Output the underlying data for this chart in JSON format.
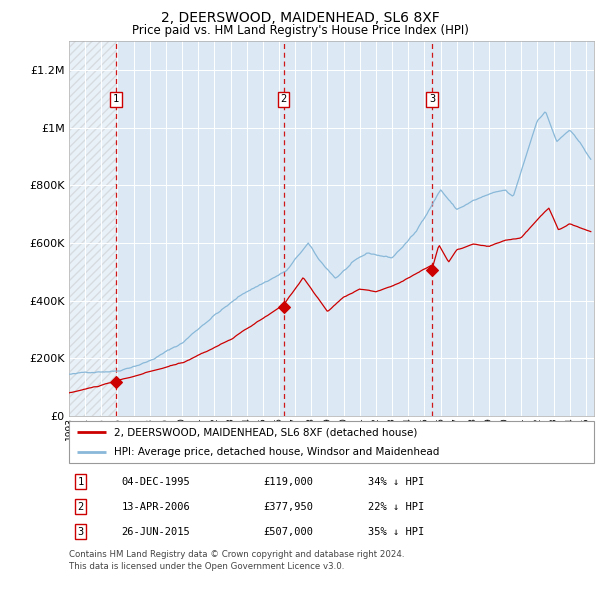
{
  "title": "2, DEERSWOOD, MAIDENHEAD, SL6 8XF",
  "subtitle": "Price paid vs. HM Land Registry's House Price Index (HPI)",
  "legend_label_red": "2, DEERSWOOD, MAIDENHEAD, SL6 8XF (detached house)",
  "legend_label_blue": "HPI: Average price, detached house, Windsor and Maidenhead",
  "footer": "Contains HM Land Registry data © Crown copyright and database right 2024.\nThis data is licensed under the Open Government Licence v3.0.",
  "transactions": [
    {
      "num": 1,
      "date": "04-DEC-1995",
      "price": 119000,
      "hpi_diff": "34% ↓ HPI",
      "x": 1995.92
    },
    {
      "num": 2,
      "date": "13-APR-2006",
      "price": 377950,
      "hpi_diff": "22% ↓ HPI",
      "x": 2006.28
    },
    {
      "num": 3,
      "date": "26-JUN-2015",
      "price": 507000,
      "hpi_diff": "35% ↓ HPI",
      "x": 2015.48
    }
  ],
  "ylim": [
    0,
    1300000
  ],
  "xlim_start": 1993,
  "xlim_end": 2025.5,
  "plot_bg_color": "#dce9f5",
  "hatch_end_year": 1995.92,
  "red_line_color": "#cc0000",
  "blue_line_color": "#89b8d8",
  "dashed_line_color": "#cc0000",
  "yticks": [
    0,
    200000,
    400000,
    600000,
    800000,
    1000000,
    1200000
  ],
  "ytick_labels": [
    "£0",
    "£200K",
    "£400K",
    "£600K",
    "£800K",
    "£1M",
    "£1.2M"
  ]
}
